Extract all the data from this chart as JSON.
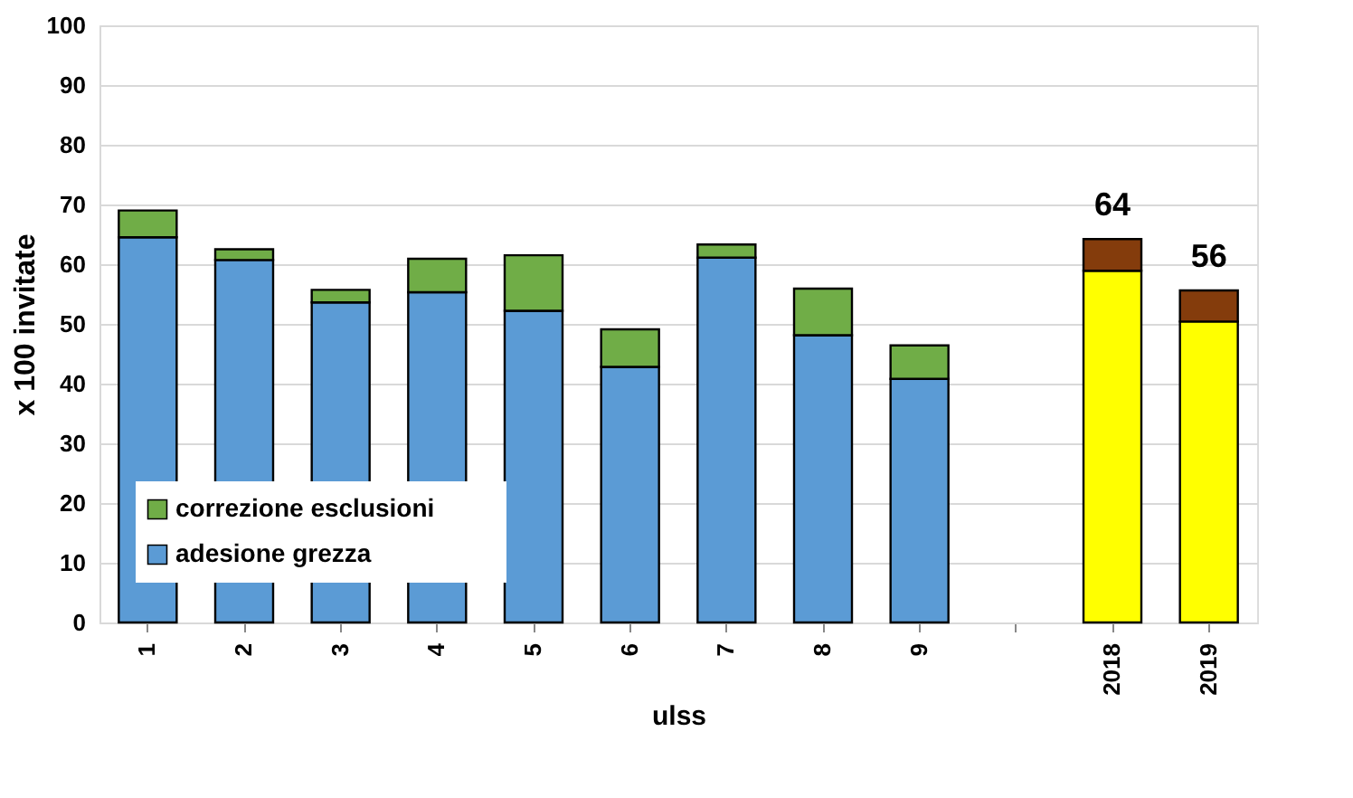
{
  "chart_data": {
    "type": "bar",
    "stacked": true,
    "xlabel": "ulss",
    "ylabel": "x 100 invitate",
    "categories": [
      "1",
      "2",
      "3",
      "4",
      "5",
      "6",
      "7",
      "8",
      "9",
      null,
      "2018",
      "2019"
    ],
    "series": [
      {
        "name": "adesione grezza",
        "color": "#5b9bd5",
        "colors": [
          "#5b9bd5",
          "#5b9bd5",
          "#5b9bd5",
          "#5b9bd5",
          "#5b9bd5",
          "#5b9bd5",
          "#5b9bd5",
          "#5b9bd5",
          "#5b9bd5",
          "#5b9bd5",
          "#ffff00",
          "#ffff00"
        ],
        "values": [
          64.5,
          60.7,
          53.6,
          55.3,
          52.2,
          42.8,
          61.1,
          48.1,
          40.8,
          null,
          58.9,
          50.4
        ]
      },
      {
        "name": "correzione esclusioni",
        "color": "#70ad47",
        "colors": [
          "#70ad47",
          "#70ad47",
          "#70ad47",
          "#70ad47",
          "#70ad47",
          "#70ad47",
          "#70ad47",
          "#70ad47",
          "#70ad47",
          "#70ad47",
          "#843c0c",
          "#843c0c"
        ],
        "values": [
          4.5,
          1.8,
          2.1,
          5.6,
          9.3,
          6.3,
          2.2,
          7.8,
          5.6,
          null,
          5.3,
          5.2
        ]
      }
    ],
    "totals": [
      null,
      null,
      null,
      null,
      null,
      null,
      null,
      null,
      null,
      null,
      "64",
      "56"
    ],
    "ylim": [
      0,
      100
    ],
    "yticks": [
      0,
      10,
      20,
      30,
      40,
      50,
      60,
      70,
      80,
      90,
      100
    ],
    "grid": "y",
    "legend": "bottom left"
  }
}
